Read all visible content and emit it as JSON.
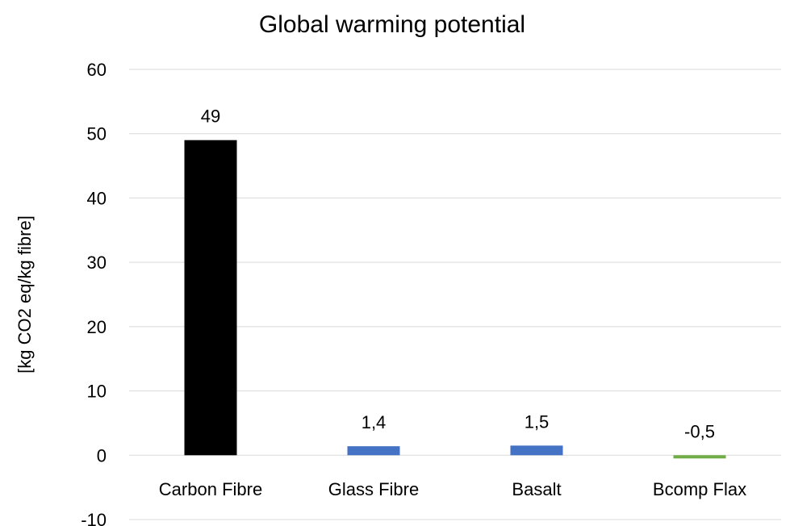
{
  "chart_data": {
    "type": "bar",
    "title": "Global warming potential",
    "xlabel": "",
    "ylabel": "[kg CO2 eq/kg fibre]",
    "ylim": [
      -10,
      60
    ],
    "yticks": [
      60,
      50,
      40,
      30,
      20,
      10,
      0,
      -10
    ],
    "grid": true,
    "legend": "none",
    "categories": [
      "Carbon Fibre",
      "Glass Fibre",
      "Basalt",
      "Bcomp Flax"
    ],
    "values": [
      49,
      1.4,
      1.5,
      -0.5
    ],
    "data_labels": [
      "49",
      "1,4",
      "1,5",
      "-0,5"
    ],
    "colors": [
      "#000000",
      "#4472C4",
      "#4472C4",
      "#70AD47"
    ],
    "gridline_color": "#D9D9D9"
  }
}
